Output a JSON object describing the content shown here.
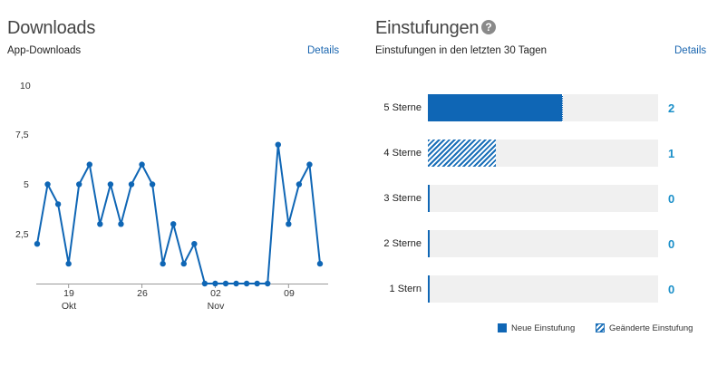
{
  "downloads": {
    "title": "Downloads",
    "subtitle": "App-Downloads",
    "details_label": "Details"
  },
  "ratings": {
    "title": "Einstufungen",
    "help_icon": "?",
    "subtitle": "Einstufungen in den letzten 30 Tagen",
    "details_label": "Details",
    "rows": [
      {
        "label": "5 Sterne",
        "new": 2,
        "changed": 0,
        "count": "2"
      },
      {
        "label": "4 Sterne",
        "new": 0,
        "changed": 1,
        "count": "1"
      },
      {
        "label": "3 Sterne",
        "new": 0,
        "changed": 0,
        "count": "0"
      },
      {
        "label": "2 Sterne",
        "new": 0,
        "changed": 0,
        "count": "0"
      },
      {
        "label": "1 Stern",
        "new": 0,
        "changed": 0,
        "count": "0"
      }
    ],
    "max": 3.4,
    "legend": {
      "new_label": "Neue Einstufung",
      "changed_label": "Geänderte Einstufung"
    },
    "colors": {
      "new": "#0f66b5",
      "changed": "#1a6fb8",
      "count": "#1a8fc9",
      "track": "#f0f0f0"
    }
  },
  "chart_data": {
    "type": "line",
    "y_ticks": [
      "10",
      "7,5",
      "5",
      "2,5"
    ],
    "x_ticks": [
      {
        "label": "19",
        "month": "Okt"
      },
      {
        "label": "26",
        "month": ""
      },
      {
        "label": "02",
        "month": "Nov"
      },
      {
        "label": "09",
        "month": ""
      }
    ],
    "x": [
      "Okt 16",
      "Okt 17",
      "Okt 18",
      "Okt 19",
      "Okt 20",
      "Okt 21",
      "Okt 22",
      "Okt 23",
      "Okt 24",
      "Okt 25",
      "Okt 26",
      "Okt 27",
      "Okt 28",
      "Okt 29",
      "Okt 30",
      "Okt 31",
      "Nov 01",
      "Nov 02",
      "Nov 03",
      "Nov 04",
      "Nov 05",
      "Nov 06",
      "Nov 07",
      "Nov 08",
      "Nov 09",
      "Nov 10",
      "Nov 11",
      "Nov 12"
    ],
    "values": [
      2,
      5,
      4,
      1,
      5,
      6,
      3,
      5,
      3,
      5,
      6,
      5,
      1,
      3,
      1,
      2,
      0,
      0,
      0,
      0,
      0,
      0,
      0,
      7,
      3,
      5,
      6,
      1
    ],
    "ylim": [
      0,
      10
    ],
    "color": "#0f66b5"
  }
}
